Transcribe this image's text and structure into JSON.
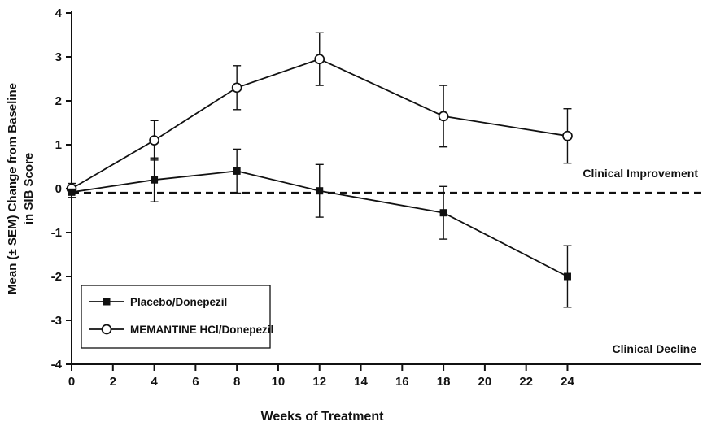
{
  "chart_data": {
    "type": "line",
    "xlabel": "Weeks of Treatment",
    "ylabel_line1": "Mean (± SEM) Change from Baseline",
    "ylabel_line2": "in SIB Score",
    "x_ticks": [
      0,
      2,
      4,
      6,
      8,
      10,
      12,
      14,
      16,
      18,
      20,
      22,
      24
    ],
    "y_ticks": [
      -4,
      -3,
      -2,
      -1,
      0,
      1,
      2,
      3,
      4
    ],
    "xlim": [
      0,
      30.4
    ],
    "ylim": [
      -4,
      4
    ],
    "grid": false,
    "baseline_dashed_y": -0.1,
    "annotations": {
      "improvement": "Clinical Improvement",
      "decline": "Clinical Decline"
    },
    "series": [
      {
        "name": "Placebo/Donepezil",
        "marker": "filled-square",
        "x": [
          0,
          4,
          8,
          12,
          18,
          24
        ],
        "y": [
          -0.08,
          0.2,
          0.4,
          -0.05,
          -0.55,
          -2.0
        ],
        "sem": [
          0.12,
          0.5,
          0.5,
          0.6,
          0.6,
          0.7
        ]
      },
      {
        "name": "MEMANTINE HCl/Donepezil",
        "marker": "open-circle",
        "x": [
          0,
          4,
          8,
          12,
          18,
          24
        ],
        "y": [
          0.0,
          1.1,
          2.3,
          2.95,
          1.65,
          1.2
        ],
        "sem": [
          0.12,
          0.45,
          0.5,
          0.6,
          0.7,
          0.62
        ]
      }
    ],
    "legend": {
      "position": "bottom-left",
      "entries": [
        "Placebo/Donepezil",
        "MEMANTINE HCl/Donepezil"
      ]
    }
  },
  "colors": {
    "ink": "#111111",
    "background": "#ffffff"
  }
}
